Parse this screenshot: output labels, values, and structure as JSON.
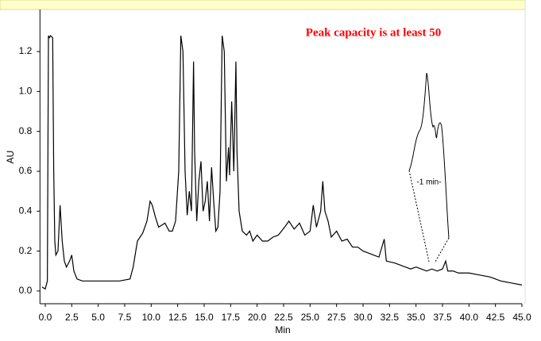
{
  "chart_data": {
    "type": "line",
    "title": "Peak capacity is at least 50",
    "annotation": "-1 min-",
    "xlabel": "Min",
    "ylabel": "AU",
    "color": "#000000",
    "x": [
      -0.3,
      0.0,
      0.2,
      0.3,
      0.4,
      0.5,
      0.7,
      0.8,
      0.9,
      1.0,
      1.2,
      1.4,
      1.6,
      1.8,
      2.0,
      2.3,
      2.5,
      2.7,
      3.0,
      3.5,
      5.0,
      7.0,
      8.0,
      8.3,
      8.7,
      9.2,
      9.6,
      9.9,
      10.1,
      10.4,
      10.7,
      11.0,
      11.3,
      11.7,
      12.0,
      12.3,
      12.6,
      12.8,
      13.0,
      13.2,
      13.4,
      13.6,
      13.8,
      14.0,
      14.1,
      14.3,
      14.5,
      14.7,
      14.9,
      15.1,
      15.3,
      15.5,
      15.7,
      15.9,
      16.1,
      16.3,
      16.5,
      16.7,
      16.9,
      17.1,
      17.3,
      17.4,
      17.6,
      17.8,
      18.0,
      18.1,
      18.3,
      18.6,
      19.0,
      19.3,
      19.6,
      20.0,
      20.5,
      21.0,
      21.5,
      22.0,
      22.3,
      22.6,
      23.0,
      23.5,
      24.0,
      24.5,
      25.0,
      25.3,
      25.6,
      26.0,
      26.2,
      26.4,
      26.7,
      27.0,
      27.5,
      28.0,
      28.5,
      29.0,
      29.5,
      30.0,
      30.5,
      31.0,
      31.5,
      32.0,
      32.2,
      33.0,
      33.5,
      34.0,
      34.5,
      35.0,
      35.5,
      36.0,
      36.5,
      37.0,
      37.5,
      37.8,
      38.0,
      38.5,
      39.0,
      40.0,
      41.0,
      42.0,
      43.0,
      44.0,
      45.0
    ],
    "values": [
      0.02,
      0.01,
      0.05,
      1.28,
      1.27,
      1.28,
      1.27,
      0.6,
      0.25,
      0.18,
      0.2,
      0.43,
      0.25,
      0.15,
      0.12,
      0.15,
      0.18,
      0.1,
      0.06,
      0.05,
      0.05,
      0.05,
      0.06,
      0.12,
      0.25,
      0.29,
      0.35,
      0.45,
      0.43,
      0.37,
      0.32,
      0.33,
      0.34,
      0.3,
      0.3,
      0.35,
      0.6,
      1.28,
      1.2,
      0.6,
      0.38,
      0.5,
      0.4,
      1.15,
      0.7,
      0.35,
      0.55,
      0.65,
      0.4,
      0.45,
      0.55,
      0.35,
      0.62,
      0.45,
      0.3,
      0.32,
      0.5,
      1.28,
      1.2,
      0.55,
      0.72,
      0.58,
      0.95,
      0.6,
      1.15,
      0.7,
      0.4,
      0.3,
      0.28,
      0.3,
      0.25,
      0.28,
      0.25,
      0.25,
      0.27,
      0.28,
      0.3,
      0.32,
      0.35,
      0.31,
      0.34,
      0.28,
      0.3,
      0.43,
      0.32,
      0.4,
      0.55,
      0.4,
      0.35,
      0.27,
      0.3,
      0.25,
      0.26,
      0.22,
      0.22,
      0.2,
      0.19,
      0.18,
      0.17,
      0.26,
      0.15,
      0.14,
      0.13,
      0.12,
      0.11,
      0.12,
      0.11,
      0.1,
      0.11,
      0.1,
      0.11,
      0.15,
      0.1,
      0.1,
      0.09,
      0.09,
      0.08,
      0.07,
      0.05,
      0.04,
      0.03
    ],
    "xlim": [
      -0.5,
      45
    ],
    "ylim": [
      -0.064,
      1.411
    ],
    "xticks": [
      {
        "value": 0,
        "label": "0.0"
      },
      2.5,
      {
        "value": 5,
        "label": "5.0"
      },
      7.5,
      {
        "value": 10,
        "label": "10.0"
      },
      12.5,
      {
        "value": 15,
        "label": "15.0"
      },
      17.5,
      {
        "value": 20,
        "label": "20.0"
      },
      22.5,
      {
        "value": 25,
        "label": "25.0"
      },
      27.5,
      {
        "value": 30,
        "label": "30.0"
      },
      32.5,
      {
        "value": 35,
        "label": "35.0"
      },
      37.5,
      {
        "value": 40,
        "label": "40.0"
      },
      42.5,
      {
        "value": 45,
        "label": "45.0"
      }
    ],
    "yticks": [
      {
        "value": 0,
        "label": "0.0"
      },
      0.2,
      0.4,
      0.6,
      0.8,
      {
        "value": 1,
        "label": "1.0"
      },
      1.2
    ]
  }
}
